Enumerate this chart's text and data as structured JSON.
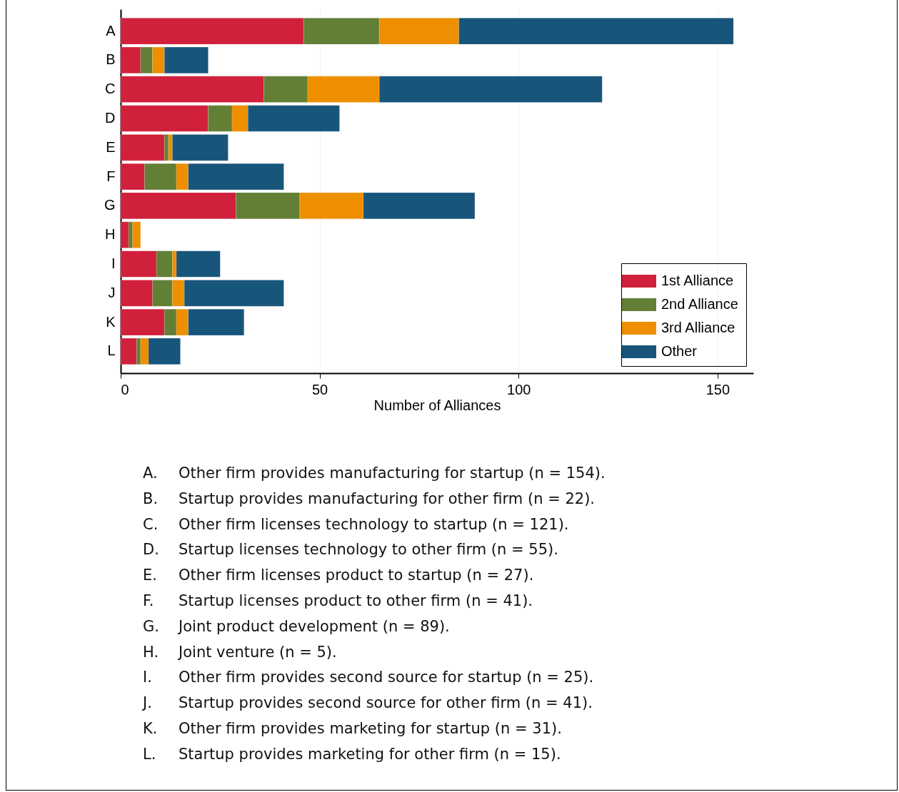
{
  "chart_data": {
    "type": "bar",
    "orientation": "horizontal",
    "stacked": true,
    "xlabel": "Number of Alliances",
    "categories": [
      "A",
      "B",
      "C",
      "D",
      "E",
      "F",
      "G",
      "H",
      "I",
      "J",
      "K",
      "L"
    ],
    "series": [
      {
        "name": "1st Alliance",
        "color": "#d1203b",
        "values": [
          46,
          5,
          36,
          22,
          11,
          6,
          29,
          2,
          9,
          8,
          11,
          4
        ]
      },
      {
        "name": "2nd Alliance",
        "color": "#627f35",
        "values": [
          19,
          3,
          11,
          6,
          1,
          8,
          16,
          1,
          4,
          5,
          3,
          1
        ]
      },
      {
        "name": "3rd Alliance",
        "color": "#ee8f00",
        "values": [
          20,
          3,
          18,
          4,
          1,
          3,
          16,
          2,
          1,
          3,
          3,
          2
        ]
      },
      {
        "name": "Other",
        "color": "#18557b",
        "values": [
          69,
          11,
          56,
          23,
          14,
          24,
          28,
          null,
          11,
          25,
          14,
          8
        ]
      }
    ],
    "xlim": [
      0,
      159
    ],
    "xticks": [
      0,
      50,
      100,
      150
    ],
    "grid": "x",
    "legend": "bottom right",
    "annotations": [
      "A.\tOther firm provides manufacturing for startup (n = 154).",
      "B.\tStartup provides manufacturing for other firm (n = 22).",
      "C.\tOther firm licenses technology to startup (n = 121).",
      "D.\tStartup licenses technology to other firm (n = 55).",
      "E.\tOther firm licenses product to startup (n = 27).",
      "F.\tStartup licenses product to other firm (n = 41).",
      "G.\tJoint product development (n = 89).",
      "H.\tJoint venture (n = 5).",
      "I.\tOther firm provides second source for startup (n = 25).",
      "J.\tStartup provides second source for other firm (n = 41).",
      "K.\tOther firm provides marketing for startup (n = 31).",
      "L.\tStartup provides marketing for other firm (n = 15)."
    ]
  }
}
